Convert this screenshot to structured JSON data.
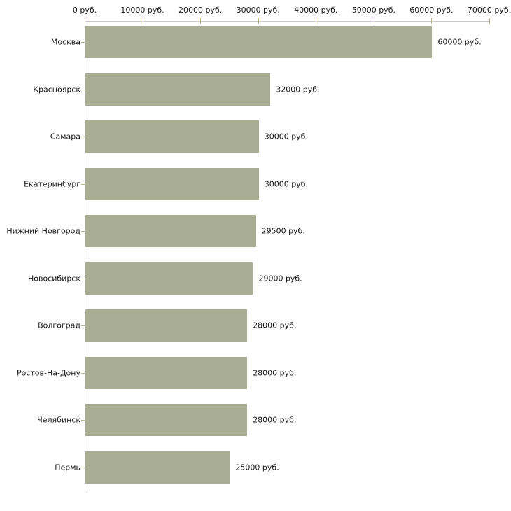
{
  "chart_data": {
    "type": "bar",
    "orientation": "horizontal",
    "title": "",
    "xlabel": "",
    "ylabel": "",
    "grid": false,
    "legend": false,
    "categories": [
      "Москва",
      "Красноярск",
      "Самара",
      "Екатеринбург",
      "Нижний Новгород",
      "Новосибирск",
      "Волгоград",
      "Ростов-На-Дону",
      "Челябинск",
      "Пермь"
    ],
    "values": [
      60000,
      32000,
      30000,
      30000,
      29500,
      29000,
      28000,
      28000,
      28000,
      25000
    ],
    "value_labels": [
      "60000 руб.",
      "32000 руб.",
      "30000 руб.",
      "30000 руб.",
      "29500 руб.",
      "29000 руб.",
      "28000 руб.",
      "28000 руб.",
      "28000 руб.",
      "25000 руб."
    ],
    "x_axis": {
      "position": "top",
      "min": 0,
      "max": 70000,
      "ticks": [
        0,
        10000,
        20000,
        30000,
        40000,
        50000,
        60000,
        70000
      ],
      "tick_labels": [
        "0 руб.",
        "10000 руб.",
        "20000 руб.",
        "30000 руб.",
        "40000 руб.",
        "50000 руб.",
        "60000 руб.",
        "70000 руб."
      ]
    },
    "colors": {
      "bar": "#a8ad93",
      "axis_line": "#c9c9c9",
      "tick_mark": "#bab687",
      "text": "#1a1a1a",
      "background": "#ffffff"
    }
  }
}
